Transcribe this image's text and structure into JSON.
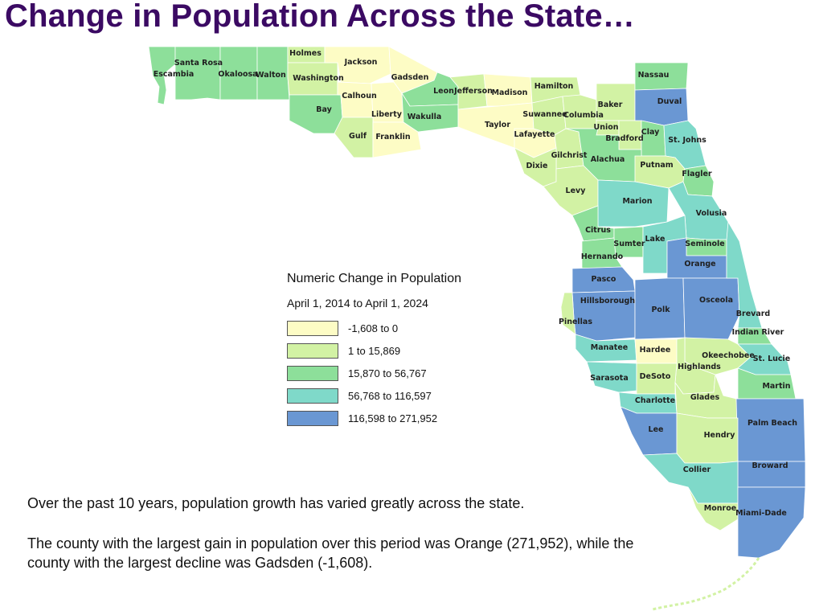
{
  "title": "Change in Population Across the State…",
  "legend": {
    "title": "Numeric Change in Population",
    "subtitle": "April 1, 2014 to April 1, 2024",
    "classes": [
      {
        "label": "-1,608 to 0",
        "color": "#fdfcc5"
      },
      {
        "label": "1 to 15,869",
        "color": "#d2f2a4"
      },
      {
        "label": "15,870 to 56,767",
        "color": "#8ddf9a"
      },
      {
        "label": "56,768 to 116,597",
        "color": "#7fd9c9"
      },
      {
        "label": "116,598 to 271,952",
        "color": "#6a97d3"
      }
    ]
  },
  "text": {
    "p1": "Over the past 10 years, population growth has varied greatly across the state.",
    "p2": "The county with the largest gain in population over this period was Orange (271,952), while the county with the largest decline was Gadsden (-1,608)."
  },
  "counties": [
    {
      "name": "Escambia",
      "class": 3
    },
    {
      "name": "Santa Rosa",
      "class": 3
    },
    {
      "name": "Okaloosa",
      "class": 3
    },
    {
      "name": "Walton",
      "class": 3
    },
    {
      "name": "Holmes",
      "class": 2
    },
    {
      "name": "Washington",
      "class": 2
    },
    {
      "name": "Bay",
      "class": 3
    },
    {
      "name": "Jackson",
      "class": 1
    },
    {
      "name": "Calhoun",
      "class": 1
    },
    {
      "name": "Liberty",
      "class": 1
    },
    {
      "name": "Gulf",
      "class": 2
    },
    {
      "name": "Franklin",
      "class": 1
    },
    {
      "name": "Gadsden",
      "class": 1
    },
    {
      "name": "Leon",
      "class": 3
    },
    {
      "name": "Wakulla",
      "class": 3
    },
    {
      "name": "Jefferson",
      "class": 2
    },
    {
      "name": "Madison",
      "class": 1
    },
    {
      "name": "Taylor",
      "class": 1
    },
    {
      "name": "Lafayette",
      "class": 1
    },
    {
      "name": "Hamilton",
      "class": 2
    },
    {
      "name": "Suwannee",
      "class": 2
    },
    {
      "name": "Columbia",
      "class": 2
    },
    {
      "name": "Baker",
      "class": 2
    },
    {
      "name": "Union",
      "class": 2
    },
    {
      "name": "Bradford",
      "class": 2
    },
    {
      "name": "Nassau",
      "class": 3
    },
    {
      "name": "Duval",
      "class": 5
    },
    {
      "name": "Clay",
      "class": 3
    },
    {
      "name": "St. Johns",
      "class": 4
    },
    {
      "name": "Gilchrist",
      "class": 2
    },
    {
      "name": "Dixie",
      "class": 2
    },
    {
      "name": "Alachua",
      "class": 3
    },
    {
      "name": "Putnam",
      "class": 2
    },
    {
      "name": "Flagler",
      "class": 3
    },
    {
      "name": "Levy",
      "class": 2
    },
    {
      "name": "Marion",
      "class": 4
    },
    {
      "name": "Volusia",
      "class": 4
    },
    {
      "name": "Citrus",
      "class": 3
    },
    {
      "name": "Sumter",
      "class": 3
    },
    {
      "name": "Lake",
      "class": 4
    },
    {
      "name": "Seminole",
      "class": 3
    },
    {
      "name": "Hernando",
      "class": 3
    },
    {
      "name": "Orange",
      "class": 5
    },
    {
      "name": "Pasco",
      "class": 5
    },
    {
      "name": "Hillsborough",
      "class": 5
    },
    {
      "name": "Pinellas",
      "class": 2
    },
    {
      "name": "Polk",
      "class": 5
    },
    {
      "name": "Osceola",
      "class": 5
    },
    {
      "name": "Brevard",
      "class": 4
    },
    {
      "name": "Indian River",
      "class": 3
    },
    {
      "name": "Manatee",
      "class": 4
    },
    {
      "name": "Hardee",
      "class": 1
    },
    {
      "name": "Okeechobee",
      "class": 2
    },
    {
      "name": "St. Lucie",
      "class": 4
    },
    {
      "name": "Highlands",
      "class": 2
    },
    {
      "name": "Sarasota",
      "class": 4
    },
    {
      "name": "DeSoto",
      "class": 2
    },
    {
      "name": "Martin",
      "class": 3
    },
    {
      "name": "Charlotte",
      "class": 4
    },
    {
      "name": "Glades",
      "class": 2
    },
    {
      "name": "Palm Beach",
      "class": 5
    },
    {
      "name": "Lee",
      "class": 5
    },
    {
      "name": "Hendry",
      "class": 2
    },
    {
      "name": "Broward",
      "class": 5
    },
    {
      "name": "Collier",
      "class": 4
    },
    {
      "name": "Monroe",
      "class": 2
    },
    {
      "name": "Miami-Dade",
      "class": 5
    }
  ]
}
